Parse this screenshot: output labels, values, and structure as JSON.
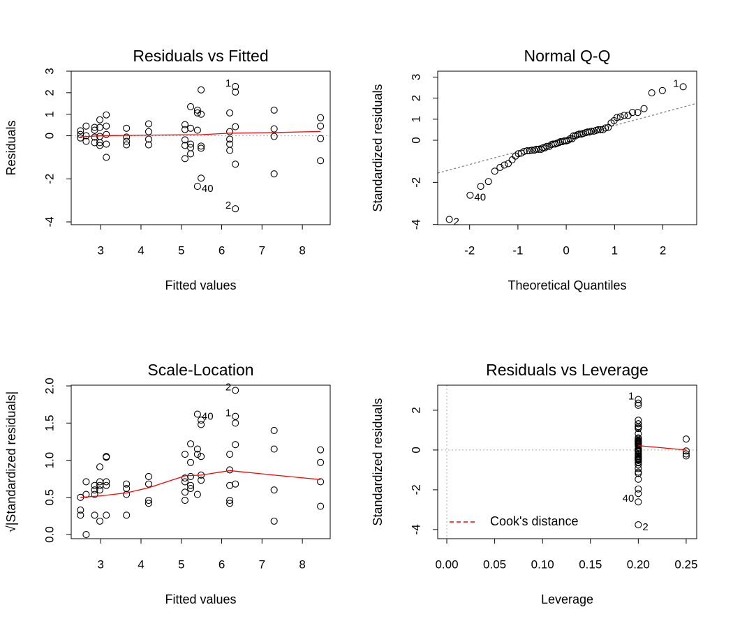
{
  "chart_data": [
    {
      "type": "scatter",
      "title": "Residuals vs Fitted",
      "xlabel": "Fitted values",
      "ylabel": "Residuals",
      "xlim": [
        2.27,
        8.69
      ],
      "ylim": [
        -4.13,
        3.0
      ],
      "xticks": [
        3,
        4,
        5,
        6,
        7,
        8
      ],
      "yticks": [
        -4,
        -2,
        0,
        1,
        2,
        3
      ],
      "points": {
        "color": "#000000",
        "x": [
          2.5,
          2.5,
          2.5,
          2.64,
          2.64,
          2.64,
          2.85,
          2.85,
          2.85,
          2.85,
          2.98,
          2.98,
          2.98,
          2.98,
          2.98,
          3.14,
          3.14,
          3.14,
          3.14,
          3.14,
          3.64,
          3.64,
          3.64,
          3.64,
          4.19,
          4.19,
          4.19,
          4.19,
          5.09,
          5.09,
          5.09,
          5.09,
          5.09,
          5.23,
          5.23,
          5.23,
          5.23,
          5.23,
          5.4,
          5.4,
          5.4,
          5.4,
          5.49,
          5.49,
          5.49,
          5.49,
          5.49,
          6.2,
          6.2,
          6.2,
          6.2,
          6.2,
          6.34,
          6.34,
          6.34,
          6.34,
          6.34,
          7.3,
          7.3,
          7.3,
          7.3,
          8.45,
          8.45,
          8.45,
          8.45
        ],
        "values": [
          0.23,
          0.06,
          -0.1,
          0.45,
          0,
          -0.26,
          0.39,
          0.26,
          -0.06,
          -0.32,
          0.74,
          0.39,
          -0.03,
          -0.32,
          -0.45,
          0.97,
          0.45,
          0.06,
          -0.39,
          -1.0,
          0.35,
          -0.06,
          -0.26,
          -0.42,
          0.55,
          0.19,
          -0.16,
          -0.42,
          0.52,
          0.29,
          -0.19,
          -0.45,
          -1.06,
          1.35,
          0.35,
          -0.39,
          -0.55,
          -0.84,
          1.19,
          1.06,
          0.26,
          -2.35,
          2.13,
          1.0,
          -0.48,
          -0.58,
          -1.97,
          1.06,
          0.19,
          -0.16,
          -0.39,
          -0.68,
          2.29,
          2.03,
          0.42,
          -1.32,
          -3.39,
          1.19,
          0.32,
          -0.03,
          -1.77,
          0.84,
          0.45,
          -0.13,
          -1.16
        ]
      },
      "smooth": {
        "color": "#ff0000",
        "x": [
          2.5,
          3.0,
          4.19,
          5.49,
          6.2,
          7.3,
          8.45
        ],
        "values": [
          -0.05,
          0.0,
          0.03,
          0.05,
          0.12,
          0.15,
          0.2
        ]
      },
      "hline": 0,
      "point_labels": [
        {
          "text": "1",
          "x": 6.34,
          "y": 2.29,
          "pos": "left"
        },
        {
          "text": "2",
          "x": 6.34,
          "y": -3.39,
          "pos": "left"
        },
        {
          "text": "40",
          "x": 5.4,
          "y": -2.35,
          "pos": "right"
        }
      ]
    },
    {
      "type": "scatter",
      "title": "Normal Q-Q",
      "xlabel": "Theoretical Quantiles",
      "ylabel": "Standardized residuals",
      "xlim": [
        -2.66,
        2.7
      ],
      "ylim": [
        -4.01,
        3.28
      ],
      "xticks": [
        -2,
        -1,
        0,
        1,
        2
      ],
      "yticks": [
        -4,
        -2,
        0,
        1,
        2,
        3
      ],
      "points": {
        "color": "#000000",
        "x": [
          -2.42,
          -1.99,
          -1.77,
          -1.61,
          -1.48,
          -1.37,
          -1.28,
          -1.2,
          -1.12,
          -1.05,
          -0.99,
          -0.93,
          -0.87,
          -0.81,
          -0.76,
          -0.71,
          -0.66,
          -0.62,
          -0.57,
          -0.52,
          -0.48,
          -0.44,
          -0.4,
          -0.35,
          -0.31,
          -0.27,
          -0.23,
          -0.19,
          -0.15,
          -0.12,
          -0.08,
          -0.04,
          0,
          0.04,
          0.08,
          0.12,
          0.15,
          0.19,
          0.23,
          0.27,
          0.31,
          0.35,
          0.4,
          0.44,
          0.48,
          0.52,
          0.57,
          0.62,
          0.66,
          0.71,
          0.76,
          0.81,
          0.87,
          0.93,
          0.99,
          1.05,
          1.12,
          1.2,
          1.28,
          1.37,
          1.48,
          1.61,
          1.77,
          1.99,
          2.42
        ],
        "values": [
          -3.76,
          -2.61,
          -2.19,
          -1.96,
          -1.47,
          -1.29,
          -1.18,
          -1.11,
          -0.93,
          -0.75,
          -0.64,
          -0.61,
          -0.53,
          -0.5,
          -0.5,
          -0.47,
          -0.47,
          -0.43,
          -0.43,
          -0.43,
          -0.36,
          -0.36,
          -0.29,
          -0.29,
          -0.21,
          -0.18,
          -0.18,
          -0.14,
          -0.11,
          -0.07,
          -0.07,
          -0.03,
          -0.03,
          0,
          0.07,
          0.07,
          0.21,
          0.21,
          0.26,
          0.29,
          0.29,
          0.32,
          0.36,
          0.39,
          0.39,
          0.43,
          0.43,
          0.47,
          0.5,
          0.5,
          0.5,
          0.58,
          0.61,
          0.82,
          0.93,
          1.08,
          1.11,
          1.18,
          1.18,
          1.32,
          1.32,
          1.5,
          2.25,
          2.36,
          2.54
        ]
      },
      "qq_line": {
        "color": "#808080",
        "x": [
          -2.66,
          2.7
        ],
        "values": [
          -1.56,
          1.75
        ]
      },
      "point_labels": [
        {
          "text": "2",
          "x": -2.42,
          "y": -3.76,
          "pos": "right"
        },
        {
          "text": "40",
          "x": -1.99,
          "y": -2.61,
          "pos": "right"
        },
        {
          "text": "1",
          "x": 2.42,
          "y": 2.54,
          "pos": "left"
        }
      ]
    },
    {
      "type": "scatter",
      "title": "Scale-Location",
      "xlabel": "Fitted values",
      "ylabel": "√|Standardized residuals|",
      "xlim": [
        2.27,
        8.69
      ],
      "ylim": [
        -0.056,
        2.01
      ],
      "xticks": [
        3,
        4,
        5,
        6,
        7,
        8
      ],
      "yticks": [
        {
          "value": 0,
          "label": "0.0"
        },
        0.5,
        {
          "value": 1,
          "label": "1.0"
        },
        1.5,
        {
          "value": 2,
          "label": "2.0"
        }
      ],
      "points": {
        "color": "#000000",
        "x": [
          2.5,
          2.5,
          2.5,
          2.64,
          2.64,
          2.64,
          2.85,
          2.85,
          2.85,
          2.85,
          2.98,
          2.98,
          2.98,
          2.98,
          2.98,
          3.14,
          3.14,
          3.14,
          3.14,
          3.14,
          3.64,
          3.64,
          3.64,
          3.64,
          4.19,
          4.19,
          4.19,
          4.19,
          5.09,
          5.09,
          5.09,
          5.09,
          5.09,
          5.23,
          5.23,
          5.23,
          5.23,
          5.23,
          5.4,
          5.4,
          5.4,
          5.4,
          5.49,
          5.49,
          5.49,
          5.49,
          5.49,
          6.2,
          6.2,
          6.2,
          6.2,
          6.2,
          6.34,
          6.34,
          6.34,
          6.34,
          6.34,
          7.3,
          7.3,
          7.3,
          7.3,
          8.45,
          8.45,
          8.45,
          8.45
        ],
        "values": [
          0.5,
          0.26,
          0.33,
          0.71,
          0,
          0.54,
          0.66,
          0.54,
          0.26,
          0.6,
          0.91,
          0.66,
          0.18,
          0.6,
          0.71,
          1.04,
          0.71,
          0.26,
          0.66,
          1.05,
          0.62,
          0.26,
          0.54,
          0.68,
          0.78,
          0.46,
          0.42,
          0.68,
          0.76,
          0.57,
          0.46,
          0.71,
          1.08,
          1.22,
          0.62,
          0.66,
          0.78,
          0.97,
          1.15,
          1.08,
          0.54,
          1.62,
          1.54,
          1.05,
          0.73,
          0.8,
          1.48,
          1.08,
          0.46,
          0.42,
          0.66,
          0.87,
          1.59,
          1.5,
          0.68,
          1.21,
          1.94,
          1.15,
          0.6,
          0.18,
          1.4,
          0.97,
          0.71,
          0.38,
          1.14
        ]
      },
      "smooth": {
        "color": "#ff0000",
        "x": [
          2.5,
          3.0,
          3.64,
          4.19,
          5.09,
          5.49,
          6.2,
          7.3,
          8.45
        ],
        "values": [
          0.5,
          0.52,
          0.56,
          0.63,
          0.79,
          0.8,
          0.86,
          0.8,
          0.74
        ]
      },
      "point_labels": [
        {
          "text": "2",
          "x": 6.34,
          "y": 1.94,
          "pos": "left"
        },
        {
          "text": "1",
          "x": 6.34,
          "y": 1.59,
          "pos": "left"
        },
        {
          "text": "40",
          "x": 5.4,
          "y": 1.62,
          "pos": "right"
        }
      ]
    },
    {
      "type": "scatter",
      "title": "Residuals vs Leverage",
      "xlabel": "Leverage",
      "ylabel": "Standardized residuals",
      "xlim": [
        -0.0095,
        0.261
      ],
      "ylim": [
        -4.46,
        3.26
      ],
      "xticks": [
        {
          "value": 0,
          "label": "0.00"
        },
        0.05,
        {
          "value": 0.1,
          "label": "0.10"
        },
        0.15,
        {
          "value": 0.2,
          "label": "0.20"
        },
        0.25
      ],
      "yticks": [
        -4,
        -2,
        0,
        2
      ],
      "points": {
        "color": "#000000",
        "x": [
          0.2,
          0.2,
          0.2,
          0.2,
          0.2,
          0.2,
          0.2,
          0.2,
          0.2,
          0.2,
          0.2,
          0.2,
          0.2,
          0.2,
          0.2,
          0.2,
          0.2,
          0.2,
          0.2,
          0.2,
          0.2,
          0.2,
          0.2,
          0.2,
          0.2,
          0.2,
          0.2,
          0.2,
          0.2,
          0.2,
          0.2,
          0.2,
          0.2,
          0.2,
          0.2,
          0.2,
          0.2,
          0.2,
          0.2,
          0.2,
          0.2,
          0.2,
          0.2,
          0.2,
          0.2,
          0.2,
          0.2,
          0.2,
          0.2,
          0.2,
          0.2,
          0.2,
          0.2,
          0.2,
          0.2,
          0.2,
          0.2,
          0.2,
          0.2,
          0.2,
          0.2,
          0.25,
          0.25,
          0.25,
          0.25
        ],
        "values": [
          -3.76,
          -2.61,
          -2.19,
          -1.96,
          -1.47,
          -1.18,
          -1.11,
          -0.93,
          -0.75,
          -0.64,
          -0.61,
          -0.53,
          -0.5,
          -0.5,
          -0.47,
          -0.47,
          -0.43,
          -0.43,
          -0.43,
          -0.36,
          -0.36,
          -0.29,
          -0.29,
          -0.21,
          -0.18,
          -0.18,
          -0.11,
          -0.07,
          -0.07,
          -0.03,
          -0.03,
          0,
          0.07,
          0.07,
          0.21,
          0.21,
          0.26,
          0.29,
          0.29,
          0.32,
          0.36,
          0.39,
          0.39,
          0.43,
          0.43,
          0.47,
          0.5,
          0.5,
          0.58,
          0.61,
          0.82,
          1.08,
          1.11,
          1.18,
          1.18,
          1.32,
          1.32,
          1.5,
          2.25,
          2.36,
          2.54,
          0.55,
          -0.05,
          -0.2,
          -0.3
        ]
      },
      "smooth": {
        "color": "#ff0000",
        "x": [
          0.2,
          0.25
        ],
        "values": [
          0.22,
          0
        ]
      },
      "hline": 0,
      "vline": 0,
      "legend": {
        "label": "Cook's distance",
        "color": "#ff0000",
        "position": "bottomleft"
      },
      "point_labels": [
        {
          "text": "1",
          "x": 0.2,
          "y": 2.54,
          "pos": "left"
        },
        {
          "text": "40",
          "x": 0.2,
          "y": -2.61,
          "pos": "left"
        },
        {
          "text": "2",
          "x": 0.2,
          "y": -3.76,
          "pos": "right"
        }
      ]
    }
  ]
}
